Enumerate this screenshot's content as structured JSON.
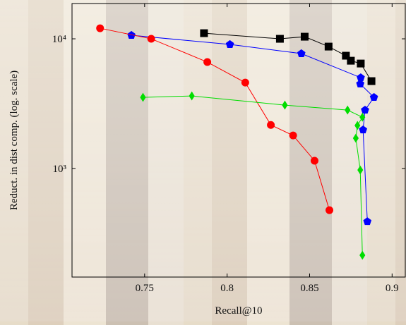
{
  "chart_data": {
    "type": "line",
    "y_scale": "log",
    "x_label": "Recall@10",
    "y_label": "Reduct. in dist comp. (log. scale)",
    "xlim": [
      0.706,
      0.908
    ],
    "xticks": [
      0.75,
      0.8,
      0.85,
      0.9
    ],
    "ylim": [
      146,
      18700
    ],
    "yticks": [
      {
        "value": 1000,
        "label": "10³"
      },
      {
        "value": 10000,
        "label": "10⁴"
      }
    ],
    "series": [
      {
        "color": "#000000",
        "marker": "square",
        "x": [
          0.786,
          0.832,
          0.847,
          0.8615,
          0.872,
          0.875,
          0.881,
          0.8875
        ],
        "values": [
          11050,
          10000,
          10380,
          8710,
          7410,
          6780,
          6450,
          4720
        ]
      },
      {
        "color": "#0000ff",
        "marker": "pentagon",
        "x": [
          0.742,
          0.8017,
          0.845,
          0.881,
          0.8807,
          0.889,
          0.8836,
          0.8824,
          0.885
        ],
        "values": [
          10650,
          9050,
          7690,
          5020,
          4490,
          3540,
          2825,
          1990,
          391
        ]
      },
      {
        "color": "#ff0000",
        "marker": "circle",
        "x": [
          0.723,
          0.754,
          0.788,
          0.811,
          0.8265,
          0.84,
          0.853,
          0.862
        ],
        "values": [
          12060,
          10000,
          6620,
          4600,
          2170,
          1800,
          1150,
          478
        ]
      },
      {
        "color": "#00dd00",
        "marker": "diamond",
        "x": [
          0.749,
          0.7786,
          0.835,
          0.873,
          0.882,
          0.879,
          0.878,
          0.8807,
          0.882
        ],
        "values": [
          3540,
          3630,
          3085,
          2825,
          2490,
          2150,
          1715,
          975,
          215
        ]
      }
    ]
  }
}
